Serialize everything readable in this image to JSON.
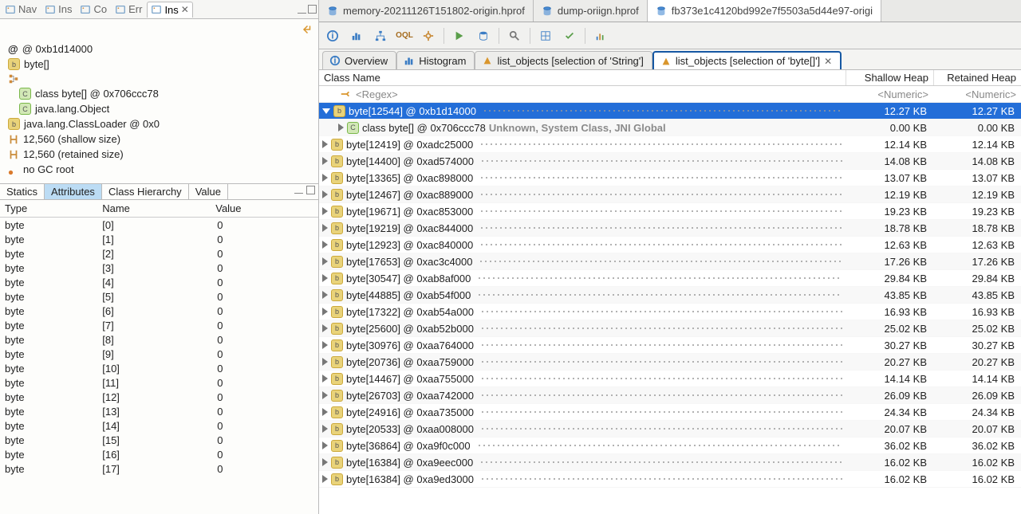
{
  "colors": {
    "accent": "#236ed8",
    "tabActiveBorder": "#1658a3"
  },
  "viewTabs": [
    {
      "label": "Nav",
      "active": false
    },
    {
      "label": "Ins",
      "active": false
    },
    {
      "label": "Co",
      "active": false
    },
    {
      "label": "Err",
      "active": false
    },
    {
      "label": "Ins",
      "active": true
    }
  ],
  "inspector": {
    "address": "@ 0xb1d14000",
    "byteLabel": "byte[]",
    "classLabel": "class byte[] @ 0x706ccc78",
    "objectLabel": "java.lang.Object",
    "classLoaderLabel": "java.lang.ClassLoader @ 0x0",
    "shallow": "12,560 (shallow size)",
    "retained": "12,560 (retained size)",
    "gcroot": "no GC root"
  },
  "attrTabs": [
    "Statics",
    "Attributes",
    "Class Hierarchy",
    "Value"
  ],
  "attrTabActive": 1,
  "attrHeaders": [
    "Type",
    "Name",
    "Value"
  ],
  "attrRows": [
    [
      "byte",
      "[0]",
      "0"
    ],
    [
      "byte",
      "[1]",
      "0"
    ],
    [
      "byte",
      "[2]",
      "0"
    ],
    [
      "byte",
      "[3]",
      "0"
    ],
    [
      "byte",
      "[4]",
      "0"
    ],
    [
      "byte",
      "[5]",
      "0"
    ],
    [
      "byte",
      "[6]",
      "0"
    ],
    [
      "byte",
      "[7]",
      "0"
    ],
    [
      "byte",
      "[8]",
      "0"
    ],
    [
      "byte",
      "[9]",
      "0"
    ],
    [
      "byte",
      "[10]",
      "0"
    ],
    [
      "byte",
      "[11]",
      "0"
    ],
    [
      "byte",
      "[12]",
      "0"
    ],
    [
      "byte",
      "[13]",
      "0"
    ],
    [
      "byte",
      "[14]",
      "0"
    ],
    [
      "byte",
      "[15]",
      "0"
    ],
    [
      "byte",
      "[16]",
      "0"
    ],
    [
      "byte",
      "[17]",
      "0"
    ]
  ],
  "editorTabs": [
    {
      "label": "memory-20211126T151802-origin.hprof",
      "active": false
    },
    {
      "label": "dump-oriign.hprof",
      "active": false
    },
    {
      "label": "fb373e1c4120bd992e7f5503a5d44e97-origi",
      "active": true
    }
  ],
  "contentTabs": [
    {
      "icon": "info",
      "label": "Overview",
      "active": false
    },
    {
      "icon": "bars",
      "label": "Histogram",
      "active": false
    },
    {
      "icon": "tri",
      "label": "list_objects  [selection of 'String']",
      "active": false
    },
    {
      "icon": "tri",
      "label": "list_objects  [selection of 'byte[]']",
      "active": true,
      "closable": true
    }
  ],
  "tableHeaders": {
    "name": "Class Name",
    "shallow": "Shallow Heap",
    "retained": "Retained Heap"
  },
  "regexPlaceholder": "<Regex>",
  "numericPlaceholder": "<Numeric>",
  "objectRows": [
    {
      "indent": 0,
      "open": true,
      "selected": true,
      "label": "byte[12544] @ 0xb1d14000",
      "shallow": "12.27 KB",
      "retained": "12.27 KB"
    },
    {
      "indent": 1,
      "open": false,
      "cls": true,
      "prefixBold": "<class>",
      "label": "class byte[] @ 0x706ccc78",
      "suffixGray": "Unknown, System Class, JNI Global",
      "shallow": "0.00 KB",
      "retained": "0.00 KB"
    },
    {
      "indent": 0,
      "open": false,
      "label": "byte[12419] @ 0xadc25000",
      "shallow": "12.14 KB",
      "retained": "12.14 KB"
    },
    {
      "indent": 0,
      "open": false,
      "label": "byte[14400] @ 0xad574000",
      "shallow": "14.08 KB",
      "retained": "14.08 KB"
    },
    {
      "indent": 0,
      "open": false,
      "label": "byte[13365] @ 0xac898000",
      "shallow": "13.07 KB",
      "retained": "13.07 KB"
    },
    {
      "indent": 0,
      "open": false,
      "label": "byte[12467] @ 0xac889000",
      "shallow": "12.19 KB",
      "retained": "12.19 KB"
    },
    {
      "indent": 0,
      "open": false,
      "label": "byte[19671] @ 0xac853000",
      "shallow": "19.23 KB",
      "retained": "19.23 KB"
    },
    {
      "indent": 0,
      "open": false,
      "label": "byte[19219] @ 0xac844000",
      "shallow": "18.78 KB",
      "retained": "18.78 KB"
    },
    {
      "indent": 0,
      "open": false,
      "label": "byte[12923] @ 0xac840000",
      "shallow": "12.63 KB",
      "retained": "12.63 KB"
    },
    {
      "indent": 0,
      "open": false,
      "label": "byte[17653] @ 0xac3c4000",
      "shallow": "17.26 KB",
      "retained": "17.26 KB"
    },
    {
      "indent": 0,
      "open": false,
      "label": "byte[30547] @ 0xab8af000",
      "shallow": "29.84 KB",
      "retained": "29.84 KB"
    },
    {
      "indent": 0,
      "open": false,
      "label": "byte[44885] @ 0xab54f000",
      "shallow": "43.85 KB",
      "retained": "43.85 KB"
    },
    {
      "indent": 0,
      "open": false,
      "label": "byte[17322] @ 0xab54a000",
      "shallow": "16.93 KB",
      "retained": "16.93 KB"
    },
    {
      "indent": 0,
      "open": false,
      "label": "byte[25600] @ 0xab52b000",
      "shallow": "25.02 KB",
      "retained": "25.02 KB"
    },
    {
      "indent": 0,
      "open": false,
      "label": "byte[30976] @ 0xaa764000",
      "shallow": "30.27 KB",
      "retained": "30.27 KB"
    },
    {
      "indent": 0,
      "open": false,
      "label": "byte[20736] @ 0xaa759000",
      "shallow": "20.27 KB",
      "retained": "20.27 KB"
    },
    {
      "indent": 0,
      "open": false,
      "label": "byte[14467] @ 0xaa755000",
      "shallow": "14.14 KB",
      "retained": "14.14 KB"
    },
    {
      "indent": 0,
      "open": false,
      "label": "byte[26703] @ 0xaa742000",
      "shallow": "26.09 KB",
      "retained": "26.09 KB"
    },
    {
      "indent": 0,
      "open": false,
      "label": "byte[24916] @ 0xaa735000",
      "shallow": "24.34 KB",
      "retained": "24.34 KB"
    },
    {
      "indent": 0,
      "open": false,
      "label": "byte[20533] @ 0xaa008000",
      "shallow": "20.07 KB",
      "retained": "20.07 KB"
    },
    {
      "indent": 0,
      "open": false,
      "label": "byte[36864] @ 0xa9f0c000",
      "shallow": "36.02 KB",
      "retained": "36.02 KB"
    },
    {
      "indent": 0,
      "open": false,
      "label": "byte[16384] @ 0xa9eec000",
      "shallow": "16.02 KB",
      "retained": "16.02 KB"
    },
    {
      "indent": 0,
      "open": false,
      "label": "byte[16384] @ 0xa9ed3000",
      "shallow": "16.02 KB",
      "retained": "16.02 KB"
    }
  ]
}
